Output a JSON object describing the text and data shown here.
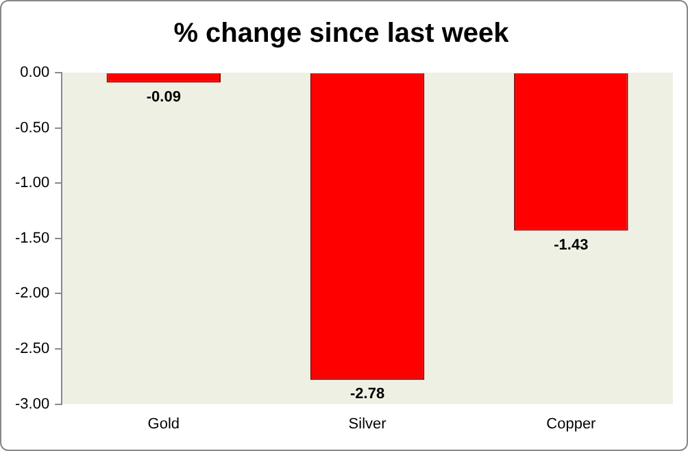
{
  "chart_data": {
    "type": "bar",
    "title": "% change since last week",
    "categories": [
      "Gold",
      "Silver",
      "Copper"
    ],
    "values": [
      -0.09,
      -2.78,
      -1.43
    ],
    "color": "#ff0000",
    "ylim": [
      -3,
      0
    ],
    "yticks": [
      {
        "value": 0,
        "label": "0.00"
      },
      {
        "value": -0.5,
        "label": "-0.50"
      },
      {
        "value": -1,
        "label": "-1.00"
      },
      {
        "value": -1.5,
        "label": "-1.50"
      },
      {
        "value": -2,
        "label": "-2.00"
      },
      {
        "value": -2.5,
        "label": "-2.50"
      },
      {
        "value": -3,
        "label": "-3.00"
      }
    ],
    "grid": false,
    "legend": false,
    "data_labels": true
  }
}
